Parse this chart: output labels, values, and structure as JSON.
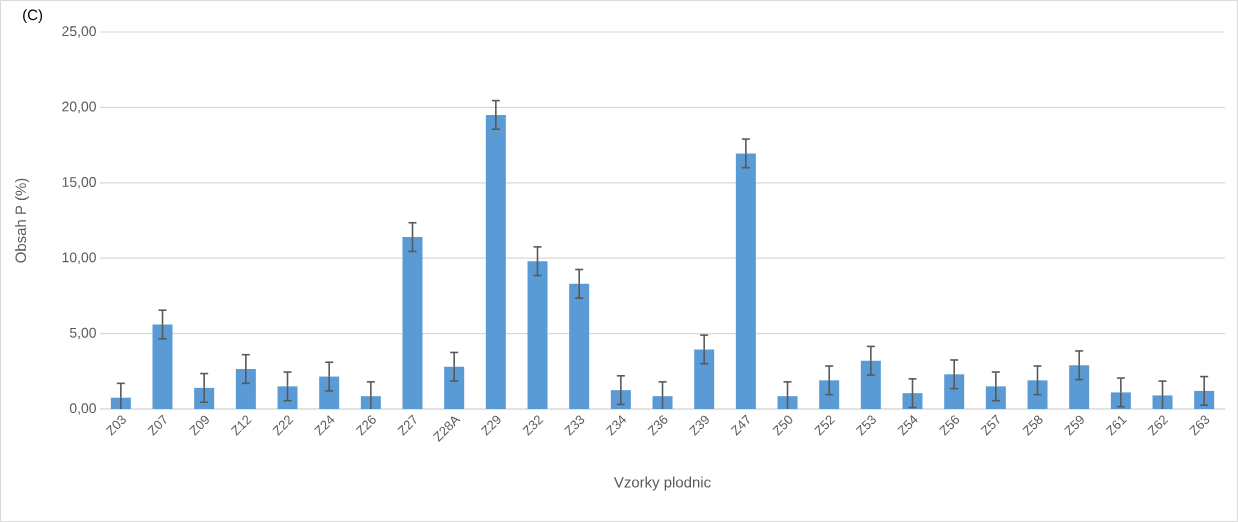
{
  "chart_data": {
    "type": "bar",
    "annotations": [
      "(C)"
    ],
    "xlabel": "Vzorky plodnic",
    "ylabel": "Obsah P (%)",
    "categories": [
      "Z03",
      "Z07",
      "Z09",
      "Z12",
      "Z22",
      "Z24",
      "Z26",
      "Z27",
      "Z28A",
      "Z29",
      "Z32",
      "Z33",
      "Z34",
      "Z36",
      "Z39",
      "Z47",
      "Z50",
      "Z52",
      "Z53",
      "Z54",
      "Z56",
      "Z57",
      "Z58",
      "Z59",
      "Z61",
      "Z62",
      "Z63"
    ],
    "values": [
      0.75,
      5.6,
      1.4,
      2.65,
      1.5,
      2.15,
      0.85,
      11.4,
      2.8,
      19.5,
      9.8,
      8.3,
      1.25,
      0.85,
      3.95,
      16.95,
      0.85,
      1.9,
      3.2,
      1.05,
      2.3,
      1.5,
      1.9,
      2.9,
      1.1,
      0.9,
      1.2
    ],
    "errors": [
      0.95,
      0.95,
      0.95,
      0.95,
      0.95,
      0.95,
      0.95,
      0.95,
      0.95,
      0.95,
      0.95,
      0.95,
      0.95,
      0.95,
      0.95,
      0.95,
      0.95,
      0.95,
      0.95,
      0.95,
      0.95,
      0.95,
      0.95,
      0.95,
      0.95,
      0.95,
      0.95
    ],
    "color": "#5b9bd5",
    "ylim": [
      0,
      25
    ],
    "yticks": [
      {
        "value": 0,
        "label": "0,00"
      },
      {
        "value": 5,
        "label": "5,00"
      },
      {
        "value": 10,
        "label": "10,00"
      },
      {
        "value": 15,
        "label": "15,00"
      },
      {
        "value": 20,
        "label": "20,00"
      },
      {
        "value": 25,
        "label": "25,00"
      }
    ],
    "grid": "y"
  }
}
